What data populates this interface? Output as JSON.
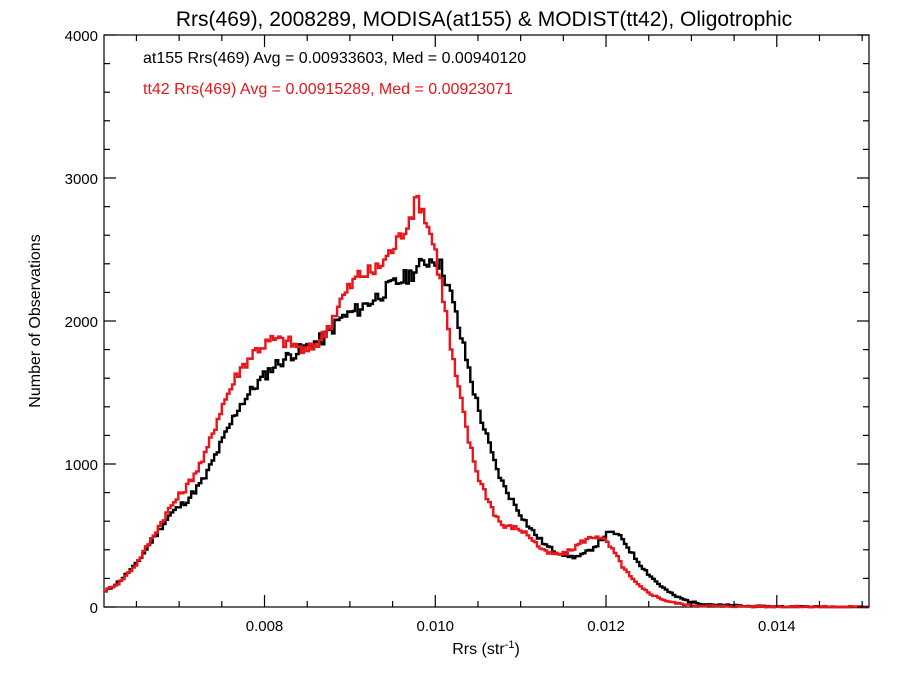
{
  "chart_data": {
    "type": "line",
    "step": true,
    "title": "Rrs(469), 2008289, MODISA(at155) & MODIST(tt42), Oligotrophic",
    "xlabel_main": "Rrs (str",
    "xlabel_sup": "-1",
    "xlabel_tail": ")",
    "ylabel": "Number of Observations",
    "xlim": [
      0.00612,
      0.01508
    ],
    "ylim": [
      0,
      4000
    ],
    "xticks": [
      0.008,
      0.01,
      0.012,
      0.014
    ],
    "xtick_labels": [
      "0.008",
      "0.010",
      "0.012",
      "0.014"
    ],
    "yticks": [
      0,
      1000,
      2000,
      3000,
      4000
    ],
    "ytick_labels": [
      "0",
      "1000",
      "2000",
      "3000",
      "4000"
    ],
    "legend_placement": "top-left",
    "grid": false,
    "annotations": [
      {
        "text": "at155 Rrs(469) Avg = 0.00933603, Med = 0.00940120",
        "color": "#000000"
      },
      {
        "text": "tt42 Rrs(469) Avg = 0.00915289, Med = 0.00923071",
        "color": "#e8161b"
      }
    ],
    "series": [
      {
        "color": "#000000",
        "x": [
          0.00612,
          0.0063,
          0.0065,
          0.0067,
          0.0069,
          0.0071,
          0.0073,
          0.0075,
          0.0077,
          0.0079,
          0.0081,
          0.0083,
          0.0085,
          0.0087,
          0.0089,
          0.0091,
          0.0093,
          0.0095,
          0.0097,
          0.0099,
          0.01,
          0.0101,
          0.0102,
          0.0103,
          0.0104,
          0.0105,
          0.0106,
          0.0107,
          0.0108,
          0.0109,
          0.011,
          0.0111,
          0.0112,
          0.0113,
          0.0114,
          0.0115,
          0.0116,
          0.0117,
          0.0118,
          0.0119,
          0.012,
          0.0121,
          0.0122,
          0.0123,
          0.0124,
          0.0125,
          0.0126,
          0.0127,
          0.0128,
          0.0129,
          0.013,
          0.0131,
          0.0133,
          0.0135,
          0.0137,
          0.014,
          0.0145,
          0.015
        ],
        "values": [
          100,
          180,
          300,
          480,
          650,
          750,
          900,
          1150,
          1400,
          1550,
          1680,
          1760,
          1820,
          1880,
          2020,
          2080,
          2160,
          2250,
          2320,
          2420,
          2440,
          2350,
          2150,
          1900,
          1650,
          1400,
          1200,
          1000,
          850,
          750,
          650,
          560,
          490,
          430,
          390,
          370,
          350,
          355,
          390,
          440,
          510,
          520,
          470,
          380,
          300,
          230,
          170,
          120,
          80,
          55,
          35,
          25,
          15,
          10,
          5,
          3,
          1,
          0
        ]
      },
      {
        "color": "#e8161b",
        "x": [
          0.00612,
          0.0063,
          0.0065,
          0.0067,
          0.0069,
          0.0071,
          0.0073,
          0.0075,
          0.0077,
          0.0079,
          0.0081,
          0.0083,
          0.0085,
          0.0087,
          0.0089,
          0.0091,
          0.0093,
          0.0095,
          0.0096,
          0.0097,
          0.0098,
          0.0099,
          0.01,
          0.0101,
          0.0102,
          0.0103,
          0.0104,
          0.0105,
          0.0106,
          0.0107,
          0.0108,
          0.0109,
          0.011,
          0.0111,
          0.0112,
          0.0113,
          0.0114,
          0.0115,
          0.0116,
          0.0117,
          0.0118,
          0.0119,
          0.012,
          0.0121,
          0.0122,
          0.0123,
          0.0124,
          0.0125,
          0.0126,
          0.0127,
          0.0128,
          0.0129,
          0.013,
          0.0132,
          0.0135,
          0.014,
          0.0145,
          0.015
        ],
        "values": [
          110,
          170,
          300,
          500,
          700,
          850,
          1050,
          1400,
          1650,
          1800,
          1870,
          1850,
          1780,
          1900,
          2150,
          2320,
          2350,
          2500,
          2600,
          2720,
          2860,
          2700,
          2500,
          2150,
          1750,
          1450,
          1150,
          920,
          780,
          650,
          560,
          560,
          540,
          500,
          430,
          380,
          370,
          370,
          400,
          450,
          480,
          500,
          460,
          380,
          280,
          200,
          140,
          100,
          70,
          45,
          30,
          20,
          12,
          8,
          5,
          3,
          2,
          0
        ]
      }
    ]
  }
}
